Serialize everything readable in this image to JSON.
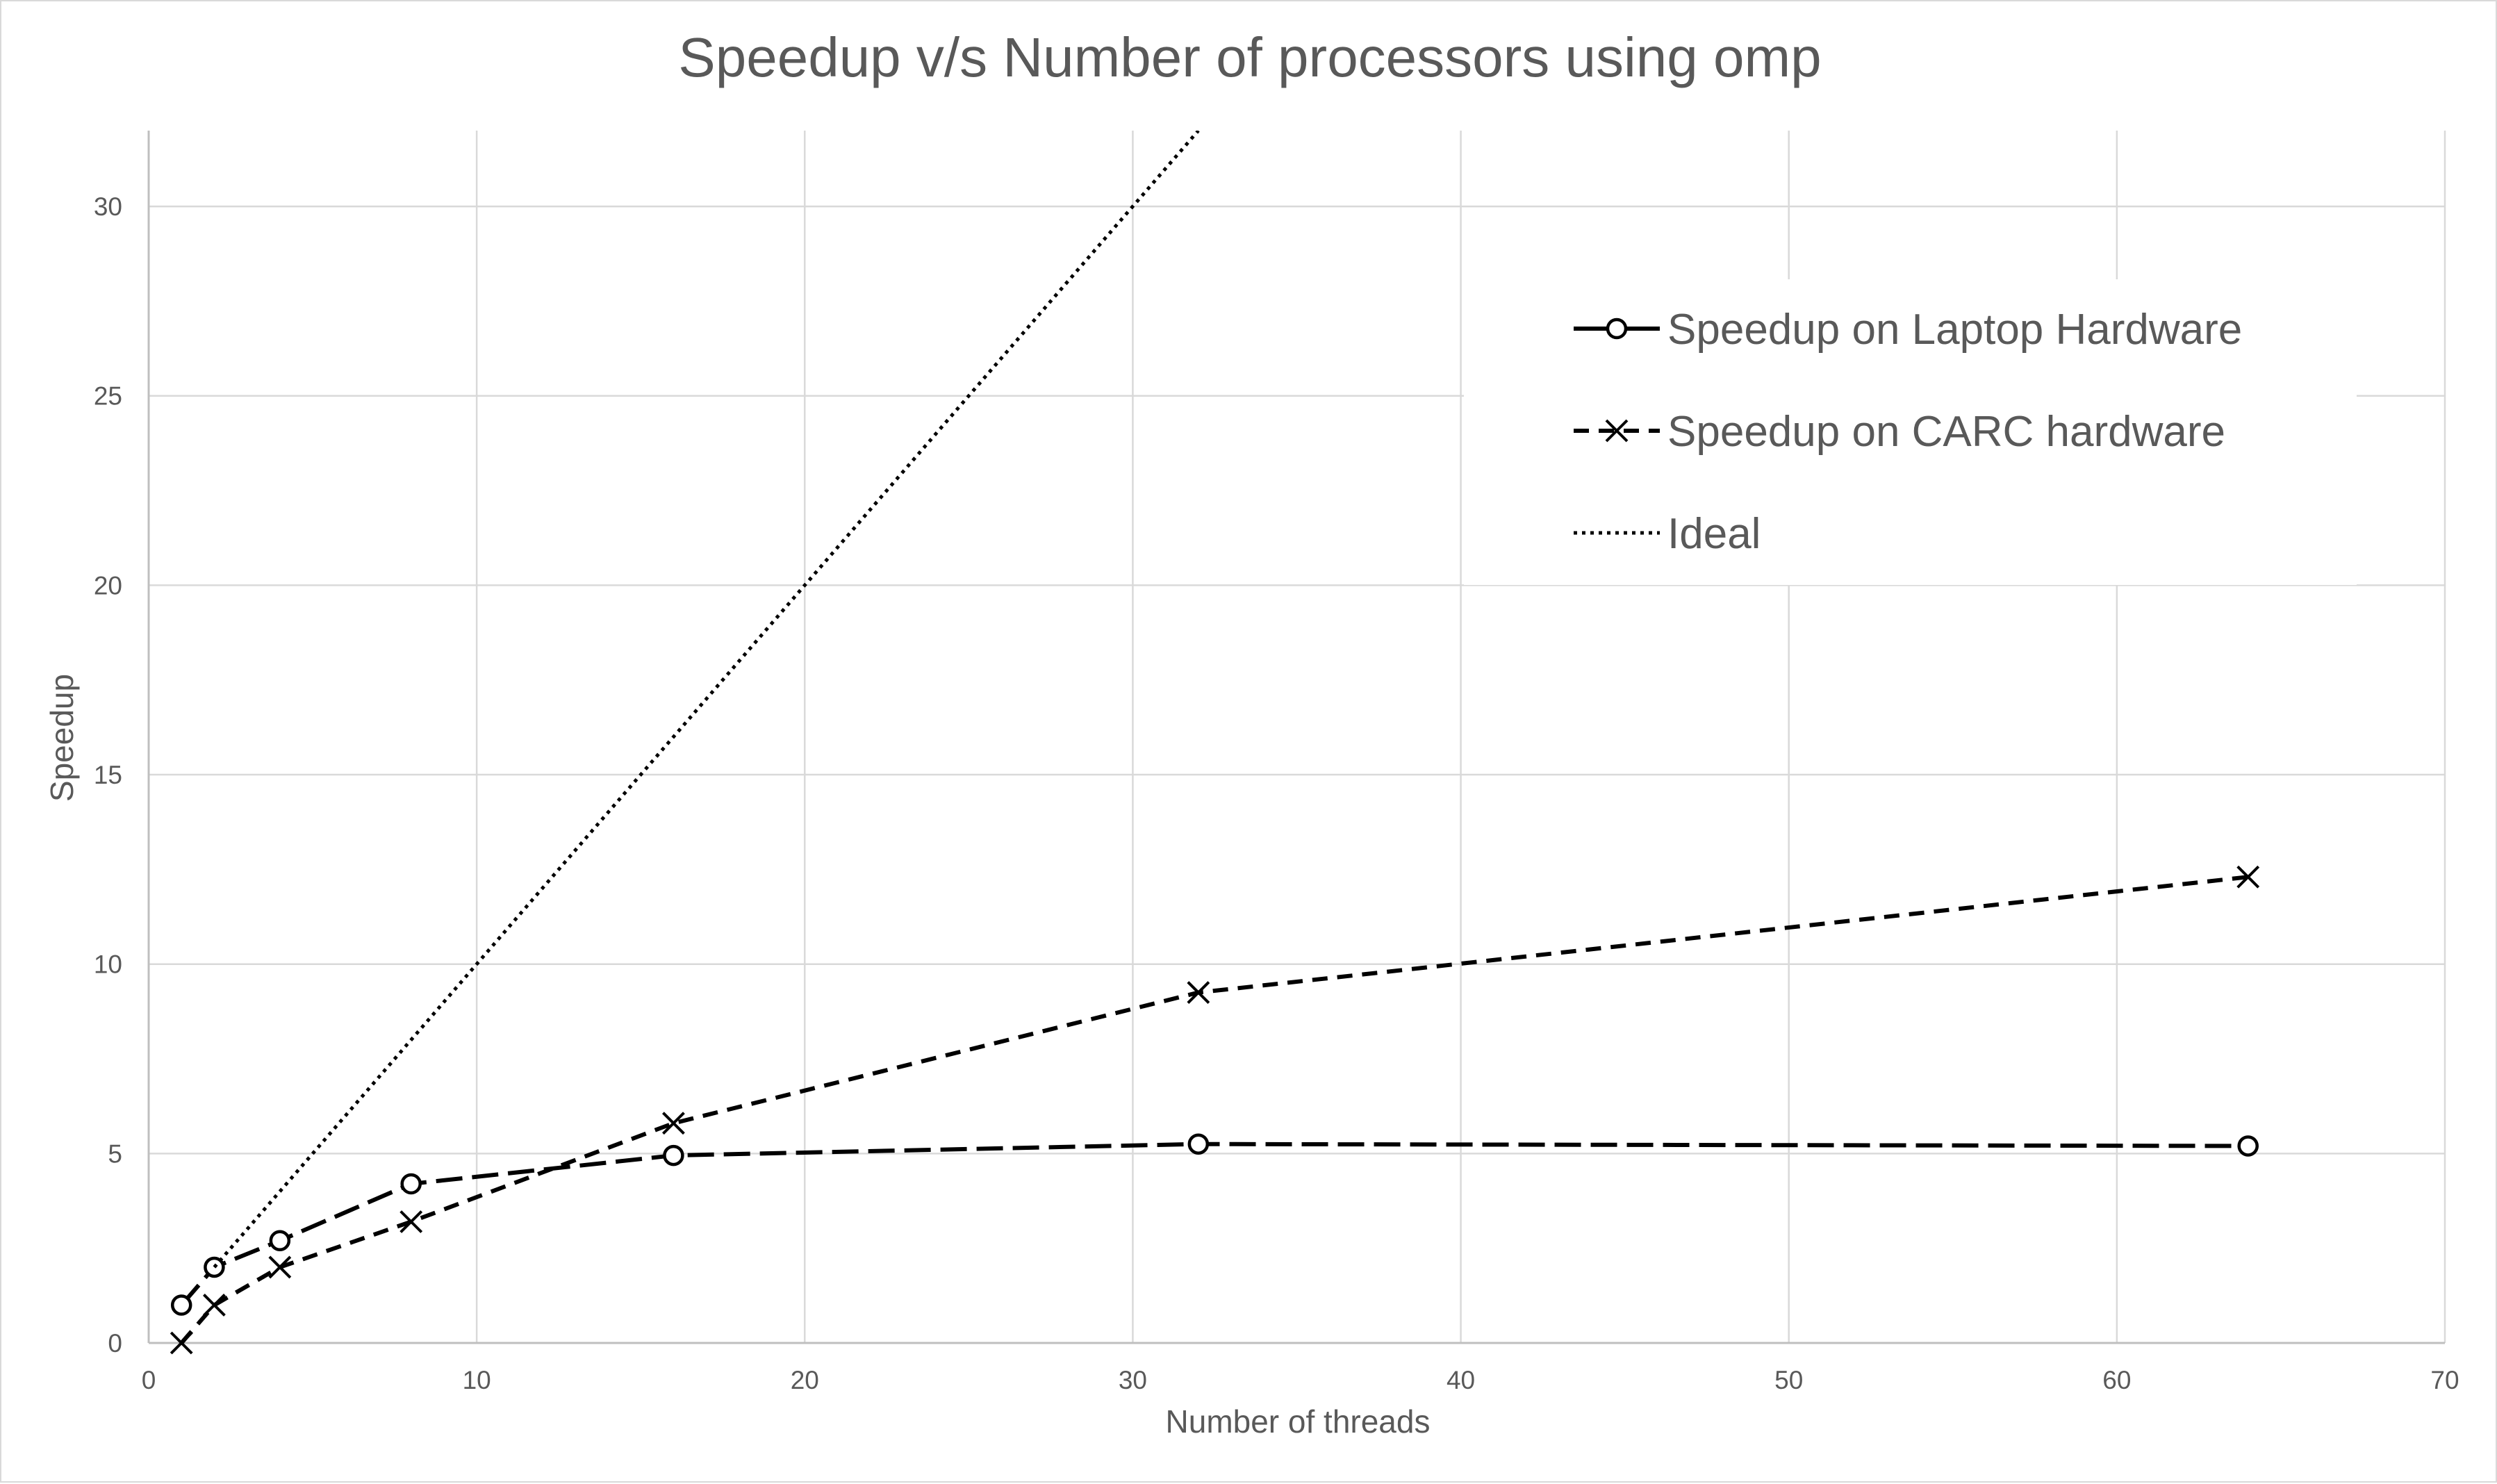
{
  "chart_data": {
    "type": "line",
    "title": "Speedup v/s Number of processors using omp",
    "xlabel": "Number of threads",
    "ylabel": "Speedup",
    "xlim": [
      0,
      70
    ],
    "ylim": [
      0,
      32
    ],
    "xticks": [
      0,
      10,
      20,
      30,
      40,
      50,
      60,
      70
    ],
    "yticks": [
      0,
      5,
      10,
      15,
      20,
      25,
      30
    ],
    "grid": true,
    "legend_position": "top-right",
    "series": [
      {
        "name": "Speedup on Laptop Hardware",
        "style": "long-dash",
        "marker": "circle",
        "color": "#000000",
        "x": [
          1,
          2,
          4,
          8,
          16,
          32,
          64
        ],
        "y": [
          1.0,
          2.0,
          2.7,
          4.2,
          4.95,
          5.25,
          5.2
        ]
      },
      {
        "name": "Speedup on CARC hardware",
        "style": "short-dash",
        "marker": "x",
        "color": "#000000",
        "x": [
          1,
          2,
          4,
          8,
          16,
          32,
          64
        ],
        "y": [
          0.0,
          1.0,
          2.0,
          3.2,
          5.8,
          9.25,
          12.3
        ]
      },
      {
        "name": "Ideal",
        "style": "dotted",
        "marker": "none",
        "color": "#000000",
        "x": [
          2,
          32
        ],
        "y": [
          2,
          32
        ]
      }
    ]
  }
}
